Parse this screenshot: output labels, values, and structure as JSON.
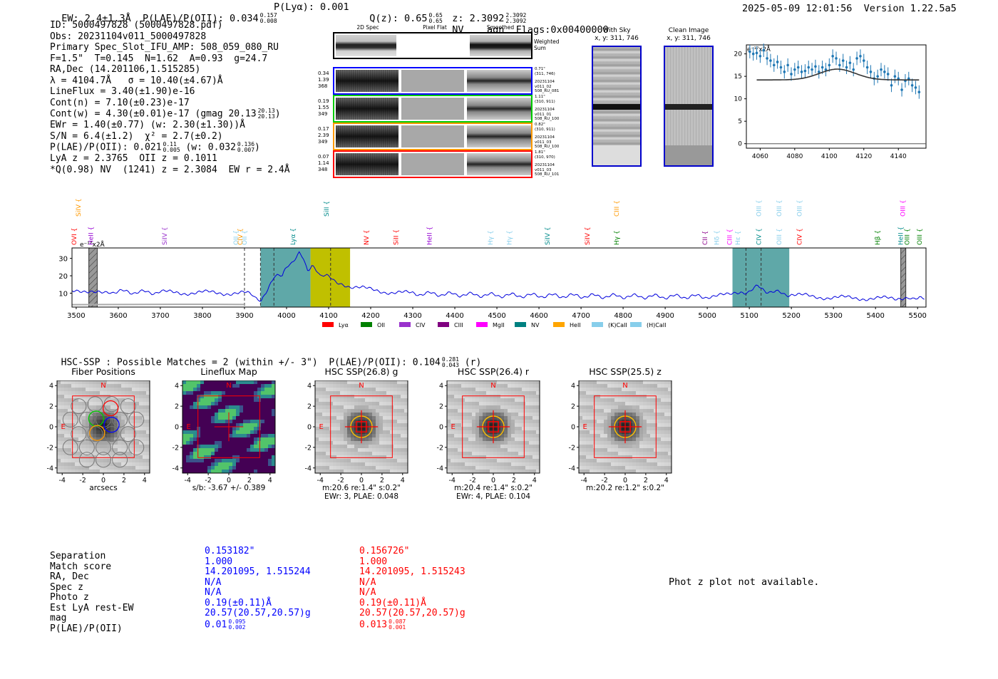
{
  "header": {
    "left": "EW: 2.4±1.3Å  P(LAE)/P(OII): 0.034",
    "left_sup": [
      "0.157",
      "0.008"
    ],
    "plya": "P(Lyα): 0.001",
    "qz": "Q(z): 0.65",
    "qz_sup": [
      "0.65",
      "0.65"
    ],
    "z": "z: 2.3092",
    "z_sup": [
      "2.3092",
      "2.3092"
    ],
    "z_tail": "NV    agn  Flags:0x00400000",
    "right": "2025-05-09 12:01:56  Version 1.22.5a5"
  },
  "info": {
    "l1": "ID: 5000497828 (5000497828.pdf)",
    "l2": "Obs: 20231104v011_5000497828",
    "l3": "Primary Spec_Slot_IFU_AMP: 508_059_080_RU",
    "l4": "F=1.5\"  T=0.145  N=1.62  A=0.93  g=24.7",
    "l5": "RA,Dec (14.201106,1.515285)",
    "l6": "λ = 4104.7Å   σ = 10.40(±4.67)Å",
    "l7": "LineFlux = 3.40(±1.90)e-16",
    "l8": "Cont(n) = 7.10(±0.23)e-17",
    "l9a": "Cont(w) = 4.30(±0.01)e-17 (gmag 20.13",
    "l9sup": [
      "20.13",
      "20.13"
    ],
    "l9b": ")",
    "l10": "EWr = 1.40(±0.77) (w: 2.30(±1.30))Å",
    "l11": "S/N = 6.4(±1.2)  χ² = 2.7(±0.2)",
    "l12a": "P(LAE)/P(OII): 0.021",
    "l12sup1": [
      "0.11",
      "0.005"
    ],
    "l12b": " (w: 0.032",
    "l12sup2": [
      "0.136",
      "0.007"
    ],
    "l12c": ")",
    "l13": "LyA z = 2.3765  OII z = 0.1011",
    "l14": "*Q(0.98) NV  (1241) z = 2.3084  EW r = 2.4Å"
  },
  "cutouts2d": {
    "col_titles": [
      "2D Spec",
      "Pixel Flat",
      "Smoothed"
    ],
    "weighted_label": "Weighted\nSum",
    "rows": [
      {
        "left": [
          "0.34",
          "1.39",
          "368"
        ],
        "right": [
          "0.71\"",
          "(311, 746)",
          "",
          "20231104",
          "v011_02",
          "508_RU_081"
        ],
        "color": "#0000ff"
      },
      {
        "left": [
          "0.19",
          "1.55",
          "349"
        ],
        "right": [
          "1.11\"",
          "(310, 911)",
          "",
          "20231104",
          "v011_01",
          "508_RU_100"
        ],
        "color": "#00cc00"
      },
      {
        "left": [
          "0.17",
          "2.39",
          "349"
        ],
        "right": [
          "0.82\"",
          "(310, 911)",
          "",
          "20231104",
          "v011_03",
          "508_RU_100"
        ],
        "color": "#ff9900"
      },
      {
        "left": [
          "0.07",
          "1.14",
          "348"
        ],
        "right": [
          "1.81\"",
          "(310, 970)",
          "",
          "20231104",
          "v011_03",
          "508_RU_101"
        ],
        "color": "#ff0000"
      }
    ]
  },
  "sky": {
    "with_sky_title": "With Sky",
    "with_sky_sub": "x, y: 311, 746",
    "clean_title": "Clean Image",
    "clean_sub": "x, y: 311, 746"
  },
  "chart_data": [
    {
      "type": "scatter",
      "title": "",
      "units_label": "e⁻¹⁷x2Å",
      "xlim": [
        4052,
        4156
      ],
      "ylim": [
        -1,
        22
      ],
      "xticks": [
        4060,
        4080,
        4100,
        4120,
        4140
      ],
      "yticks": [
        0,
        5,
        10,
        15,
        20
      ],
      "points": {
        "x": [
          4054,
          4056,
          4058,
          4060,
          4062,
          4064,
          4066,
          4068,
          4070,
          4072,
          4074,
          4076,
          4078,
          4080,
          4082,
          4084,
          4086,
          4088,
          4090,
          4092,
          4094,
          4096,
          4098,
          4100,
          4102,
          4104,
          4106,
          4108,
          4110,
          4112,
          4114,
          4116,
          4118,
          4120,
          4122,
          4124,
          4126,
          4128,
          4130,
          4132,
          4134,
          4136,
          4138,
          4140,
          4142,
          4144,
          4146,
          4148,
          4150,
          4152
        ],
        "y": [
          20.5,
          20.0,
          20.2,
          19.5,
          20.8,
          19.0,
          18.5,
          17.5,
          18.2,
          17.0,
          16.0,
          17.5,
          15.5,
          16.5,
          17.0,
          16.0,
          16.2,
          17.0,
          16.5,
          17.2,
          16.0,
          17.0,
          16.5,
          17.5,
          19.5,
          19.0,
          17.5,
          18.5,
          17.0,
          18.0,
          16.5,
          19.0,
          19.5,
          18.5,
          17.0,
          16.0,
          14.5,
          15.0,
          16.5,
          16.0,
          15.5,
          13.0,
          15.0,
          14.5,
          12.0,
          14.0,
          14.5,
          13.0,
          12.5,
          11.5
        ],
        "err": [
          1.5,
          1.5,
          1.5,
          1.5,
          1.5,
          1.5,
          1.5,
          1.5,
          1.5,
          1.5,
          1.5,
          1.5,
          1.5,
          1.5,
          1.5,
          1.5,
          1.5,
          1.5,
          1.5,
          1.5,
          1.5,
          1.5,
          1.5,
          1.5,
          1.5,
          1.5,
          1.5,
          1.5,
          1.5,
          1.5,
          1.5,
          1.5,
          1.5,
          1.5,
          1.5,
          1.5,
          1.5,
          1.5,
          1.5,
          1.5,
          1.5,
          1.5,
          1.5,
          1.5,
          1.5,
          1.5,
          1.5,
          1.5,
          1.5,
          1.5
        ]
      },
      "model": {
        "continuum": 14.2,
        "peak_lambda": 4104.7,
        "amplitude": 2.4,
        "sigma": 10.4,
        "x_range": [
          4058,
          4152
        ]
      }
    },
    {
      "type": "line",
      "title": "",
      "units_label": "e⁻¹⁷x2Å",
      "xlim": [
        3490,
        5520
      ],
      "ylim": [
        2,
        36
      ],
      "xticks": [
        3500,
        3600,
        3700,
        3800,
        3900,
        4000,
        4100,
        4200,
        4300,
        4400,
        4500,
        4600,
        4700,
        4800,
        4900,
        5000,
        5100,
        5200,
        5300,
        5400,
        5500
      ],
      "yticks": [
        10,
        20,
        30
      ],
      "series": {
        "name": "spectrum",
        "x": [
          3490,
          3520,
          3550,
          3580,
          3620,
          3660,
          3700,
          3750,
          3800,
          3850,
          3900,
          3920,
          3940,
          3955,
          3970,
          3990,
          4000,
          4010,
          4020,
          4030,
          4040,
          4050,
          4060,
          4070,
          4080,
          4100,
          4120,
          4150,
          4200,
          4250,
          4300,
          4400,
          4500,
          4600,
          4700,
          4800,
          4900,
          5000,
          5050,
          5080,
          5100,
          5120,
          5140,
          5160,
          5200,
          5250,
          5300,
          5350,
          5400,
          5450,
          5480,
          5500,
          5520
        ],
        "y": [
          10.5,
          10.0,
          10.8,
          11.0,
          10.8,
          10.5,
          10.6,
          10.2,
          10.4,
          10.1,
          10.0,
          9.5,
          5.5,
          11.5,
          18.5,
          20.5,
          24.0,
          27.0,
          30.5,
          32.5,
          29.5,
          24.0,
          25.5,
          22.5,
          20.5,
          19.0,
          17.0,
          14.0,
          12.0,
          10.5,
          9.8,
          9.3,
          8.8,
          8.6,
          8.4,
          8.2,
          8.0,
          8.1,
          8.8,
          10.0,
          11.5,
          13.5,
          11.5,
          10.5,
          9.2,
          8.0,
          7.5,
          7.2,
          7.0,
          6.8,
          8.2,
          6.6,
          6.5
        ]
      },
      "shaded_regions": [
        {
          "type": "hatched",
          "range": [
            3530,
            3550
          ]
        },
        {
          "type": "teal",
          "range": [
            3938,
            4057
          ]
        },
        {
          "type": "olive",
          "range": [
            4057,
            4151
          ]
        },
        {
          "type": "teal",
          "range": [
            5060,
            5195
          ]
        },
        {
          "type": "hatched",
          "range": [
            5460,
            5472
          ]
        }
      ],
      "vlines": [
        3900,
        3938,
        3970,
        4104.7,
        5092,
        5128
      ],
      "line_markers": [
        {
          "name": "OVI",
          "lambda": 3500,
          "color": "#ff0000",
          "row": 1
        },
        {
          "name": "HeII",
          "lambda": 3540,
          "color": "#9400d3",
          "row": 1
        },
        {
          "name": "SiIV",
          "lambda": 3510,
          "color": "#ff9900",
          "row": 0
        },
        {
          "name": "SiIV",
          "lambda": 3715,
          "color": "#9932cc",
          "row": 1
        },
        {
          "name": "OII",
          "lambda": 3885,
          "color": "#87ceeb",
          "row": 1
        },
        {
          "name": "OII",
          "lambda": 3905,
          "color": "#87ceeb",
          "row": 1
        },
        {
          "name": "CIV",
          "lambda": 3895,
          "color": "#ff9900",
          "row": 1
        },
        {
          "name": "Lyα",
          "lambda": 4020,
          "color": "#008b8b",
          "row": 1
        },
        {
          "name": "SiII",
          "lambda": 4100,
          "color": "#008b8b",
          "row": 0
        },
        {
          "name": "NV",
          "lambda": 4195,
          "color": "#ff0000",
          "row": 1
        },
        {
          "name": "SiII",
          "lambda": 4265,
          "color": "#ff0000",
          "row": 1
        },
        {
          "name": "HeII",
          "lambda": 4345,
          "color": "#9400d3",
          "row": 1
        },
        {
          "name": "Hγ",
          "lambda": 4490,
          "color": "#87ceeb",
          "row": 1
        },
        {
          "name": "Hγ",
          "lambda": 4535,
          "color": "#87ceeb",
          "row": 1
        },
        {
          "name": "SiIV",
          "lambda": 4625,
          "color": "#008b8b",
          "row": 1
        },
        {
          "name": "SiIV",
          "lambda": 4720,
          "color": "#ff0000",
          "row": 1
        },
        {
          "name": "CIII",
          "lambda": 4790,
          "color": "#ff9900",
          "row": 0
        },
        {
          "name": "Hγ",
          "lambda": 4790,
          "color": "#008000",
          "row": 1
        },
        {
          "name": "CII",
          "lambda": 5000,
          "color": "#8b008b",
          "row": 1
        },
        {
          "name": "Hδ",
          "lambda": 5028,
          "color": "#87ceeb",
          "row": 1
        },
        {
          "name": "CIII",
          "lambda": 5058,
          "color": "#ff00ff",
          "row": 1
        },
        {
          "name": "Hε",
          "lambda": 5078,
          "color": "#87ceeb",
          "row": 1
        },
        {
          "name": "CIV",
          "lambda": 5128,
          "color": "#008b8b",
          "row": 1
        },
        {
          "name": "OIII",
          "lambda": 5128,
          "color": "#87ceeb",
          "row": 0
        },
        {
          "name": "OIII",
          "lambda": 5176,
          "color": "#87ceeb",
          "row": 0
        },
        {
          "name": "OIII",
          "lambda": 5176,
          "color": "#87ceeb",
          "row": 1
        },
        {
          "name": "OIII",
          "lambda": 5224,
          "color": "#87ceeb",
          "row": 0
        },
        {
          "name": "CIV",
          "lambda": 5224,
          "color": "#ff0000",
          "row": 1
        },
        {
          "name": "Hβ",
          "lambda": 5410,
          "color": "#008000",
          "row": 1
        },
        {
          "name": "HeII",
          "lambda": 5465,
          "color": "#008b8b",
          "row": 1
        },
        {
          "name": "OIII",
          "lambda": 5470,
          "color": "#ff00ff",
          "row": 0
        },
        {
          "name": "OIII",
          "lambda": 5480,
          "color": "#008000",
          "row": 1
        },
        {
          "name": "OIII",
          "lambda": 5510,
          "color": "#008000",
          "row": 1
        }
      ],
      "legend": [
        {
          "name": "Lyα",
          "color": "#ff0000"
        },
        {
          "name": "OII",
          "color": "#008000"
        },
        {
          "name": "CIV",
          "color": "#9932cc"
        },
        {
          "name": "CIII",
          "color": "#800080"
        },
        {
          "name": "MgII",
          "color": "#ff00ff"
        },
        {
          "name": "NV",
          "color": "#008080"
        },
        {
          "name": "HeII",
          "color": "#ffa500"
        },
        {
          "name": "(K)CaII",
          "color": "#87ceeb"
        },
        {
          "name": "(H)CaII",
          "color": "#87ceeb"
        }
      ]
    }
  ],
  "hsc": {
    "title": "HSC-SSP : Possible Matches = 2 (within +/- 3\")  P(LAE)/P(OII): 0.104",
    "title_sup": [
      "0.281",
      "0.043"
    ],
    "title_tail": "(r)",
    "cutouts": [
      {
        "title": "Fiber Positions",
        "cap1": "arcsecs",
        "cap2": ""
      },
      {
        "title": "Lineflux Map",
        "cap1": "s/b: -3.67 +/- 0.389",
        "cap2": ""
      },
      {
        "title": "HSC SSP(26.8) g",
        "cap1": "m:20.6  re:1.4\"  s:0.2\"",
        "cap2": "EWr: 3, PLAE: 0.048"
      },
      {
        "title": "HSC SSP(26.4) r",
        "cap1": "m:20.4  re:1.4\"  s:0.2\"",
        "cap2": "EWr: 4, PLAE: 0.104"
      },
      {
        "title": "HSC SSP(25.5) z",
        "cap1": "m:20.2  re:1.2\"  s:0.2\"",
        "cap2": ""
      }
    ],
    "axis_ticks": [
      "-4",
      "-2",
      "0",
      "2",
      "4"
    ],
    "north": "N",
    "east": "E"
  },
  "table": {
    "labels": [
      "Separation",
      "Match score",
      "RA, Dec",
      "Spec z",
      "Photo z",
      "Est LyA rest-EW",
      "mag",
      "P(LAE)/P(OII)"
    ],
    "col1": [
      "0.153182\"",
      "1.000",
      "14.201095, 1.515244",
      "N/A",
      "N/A",
      "0.19(±0.11)Å",
      "20.57(20.57,20.57)g",
      "0.01"
    ],
    "col1_sup": [
      "0.095",
      "0.002"
    ],
    "col2": [
      "0.156726\"",
      "1.000",
      "14.201095, 1.515243",
      "N/A",
      "N/A",
      "0.19(±0.11)Å",
      "20.57(20.57,20.57)g",
      "0.013"
    ],
    "col2_sup": [
      "0.087",
      "0.001"
    ]
  },
  "photz": "Phot z plot not available."
}
